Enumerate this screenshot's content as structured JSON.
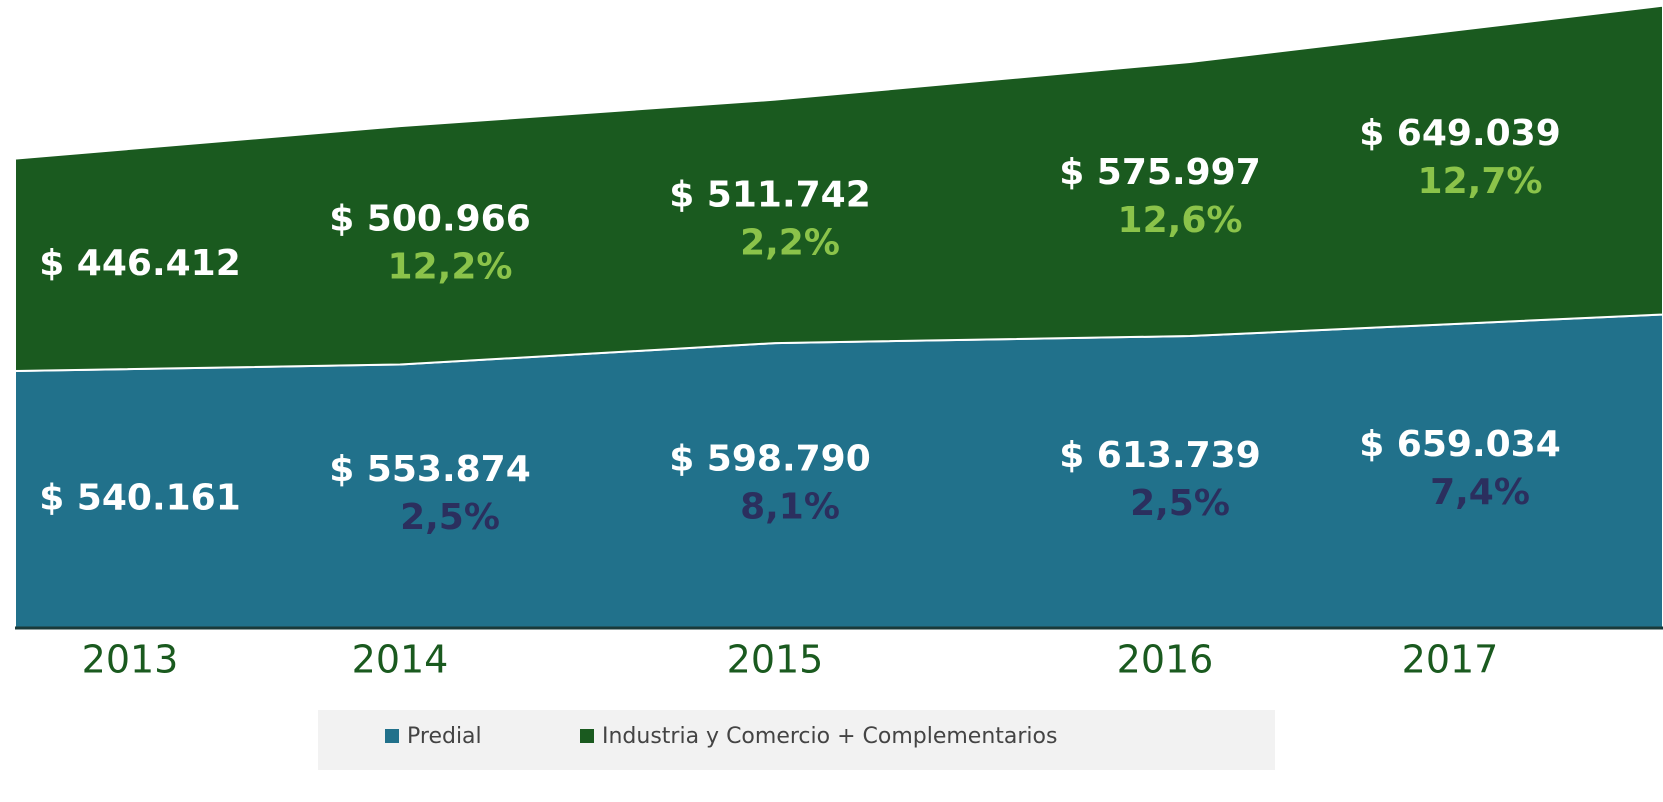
{
  "chart_data": {
    "type": "stacked_area",
    "categories": [
      "2013",
      "2014",
      "2015",
      "2016",
      "2017"
    ],
    "ylim": [
      0,
      1320000
    ],
    "series": [
      {
        "name": "Predial",
        "color": "#21718b",
        "values": [
          540161,
          553874,
          598790,
          613739,
          659034
        ],
        "value_labels": [
          "$ 540.161",
          "$ 553.874",
          "$ 598.790",
          "$ 613.739",
          "$ 659.034"
        ],
        "growth_labels": [
          null,
          "2,5%",
          "8,1%",
          "2,5%",
          "7,4%"
        ],
        "growth_color": "#2b2f5e"
      },
      {
        "name": "Industria y Comercio + Complementarios",
        "color": "#1a5a1f",
        "values": [
          446412,
          500966,
          511742,
          575997,
          649039
        ],
        "value_labels": [
          "$ 446.412",
          "$ 500.966",
          "$ 511.742",
          "$ 575.997",
          "$ 649.039"
        ],
        "growth_labels": [
          null,
          "12,2%",
          "2,2%",
          "12,6%",
          "12,7%"
        ],
        "growth_color": "#8bc34a"
      }
    ]
  }
}
